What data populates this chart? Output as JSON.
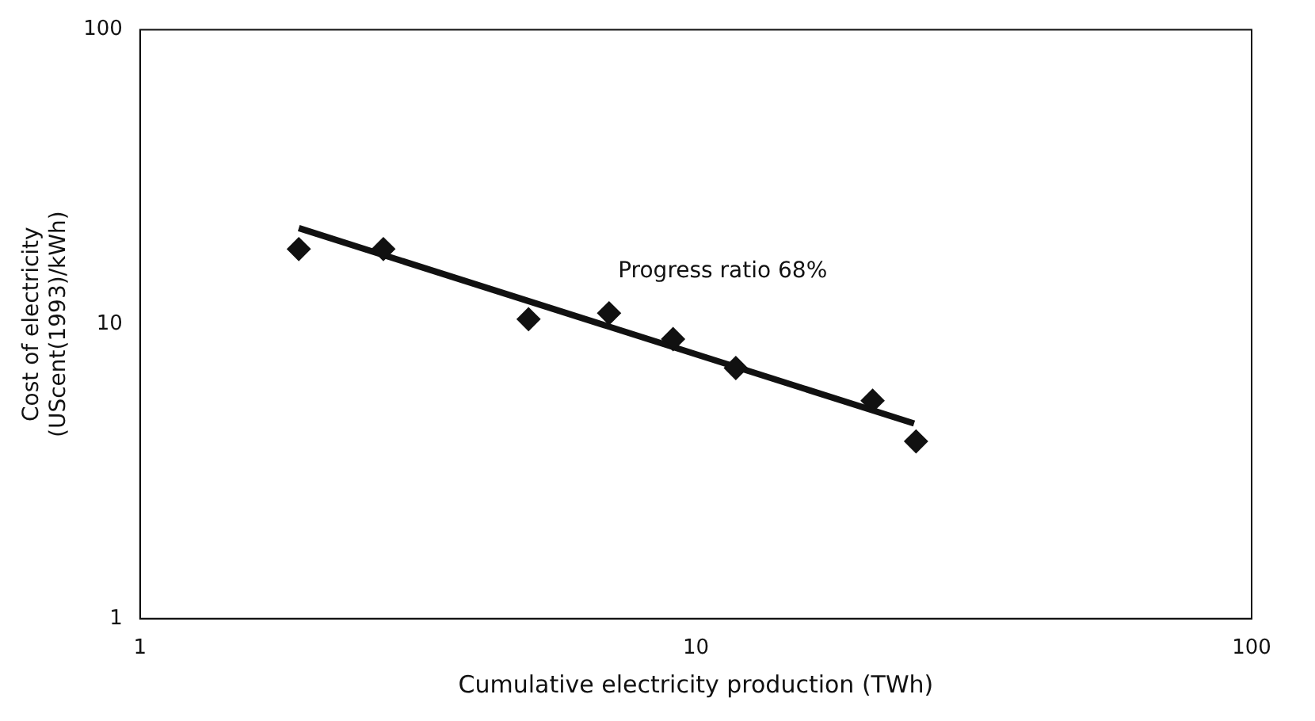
{
  "chart_data": {
    "type": "scatter",
    "xlabel": "Cumulative electricity production (TWh)",
    "ylabel": "Cost of electricity\n(UScent(1993)/kWh)",
    "log": "xy",
    "xlim": [
      1,
      100
    ],
    "ylim": [
      1,
      100
    ],
    "xticks": [
      1,
      10,
      100
    ],
    "yticks": [
      1,
      10,
      100
    ],
    "marker": "diamond",
    "series": [
      {
        "type": "scatter",
        "color": "#111111",
        "x": [
          1.93,
          2.74,
          5.0,
          6.98,
          9.1,
          11.8,
          20.8,
          24.9
        ],
        "values": [
          18,
          18,
          10.4,
          10.9,
          8.9,
          7.1,
          5.5,
          4.0
        ]
      },
      {
        "type": "line",
        "color": "#111111",
        "marker": "none",
        "x": [
          1.93,
          24.7
        ],
        "values": [
          21.2,
          4.6
        ]
      }
    ],
    "annotations": [
      "Progress ratio 68%"
    ]
  }
}
